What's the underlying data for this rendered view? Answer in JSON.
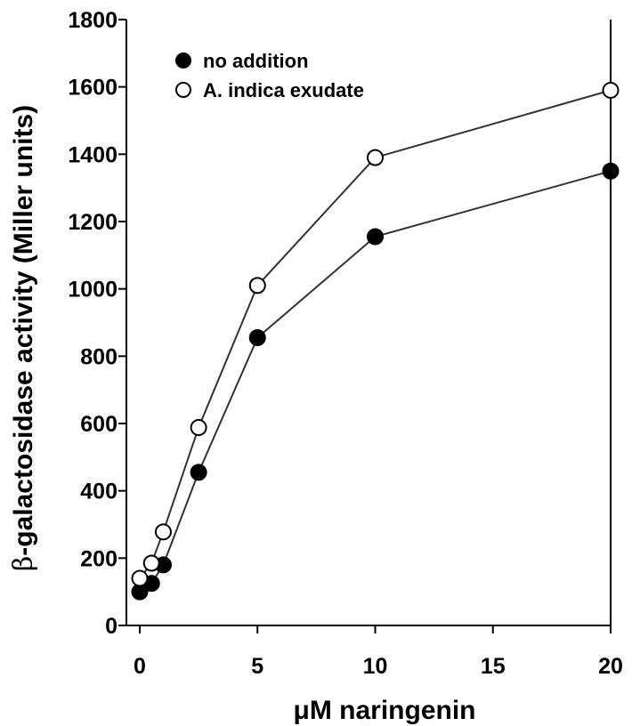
{
  "chart_data": {
    "type": "line",
    "title": "",
    "xlabel": "μM naringenin",
    "ylabel_symbol": "β",
    "ylabel_text": "-galactosidase activity (Miller units)",
    "xlim": [
      0,
      20
    ],
    "ylim": [
      0,
      1800
    ],
    "xticks": [
      0,
      5,
      10,
      15,
      20
    ],
    "yticks": [
      0,
      200,
      400,
      600,
      800,
      1000,
      1200,
      1400,
      1600,
      1800
    ],
    "grid": false,
    "legend_position": "top-left",
    "colors": {
      "filled": "#000000",
      "open": "#ffffff",
      "line": "#333333"
    },
    "series": [
      {
        "name": "no addition",
        "marker": "filled-circle",
        "x": [
          0,
          0.5,
          1,
          2.5,
          5,
          10,
          20
        ],
        "y": [
          100,
          125,
          180,
          455,
          855,
          1155,
          1350
        ]
      },
      {
        "name": "A. indica exudate",
        "marker": "open-circle",
        "x": [
          0,
          0.5,
          1,
          2.5,
          5,
          10,
          20
        ],
        "y": [
          140,
          185,
          278,
          588,
          1010,
          1390,
          1590
        ]
      }
    ]
  }
}
